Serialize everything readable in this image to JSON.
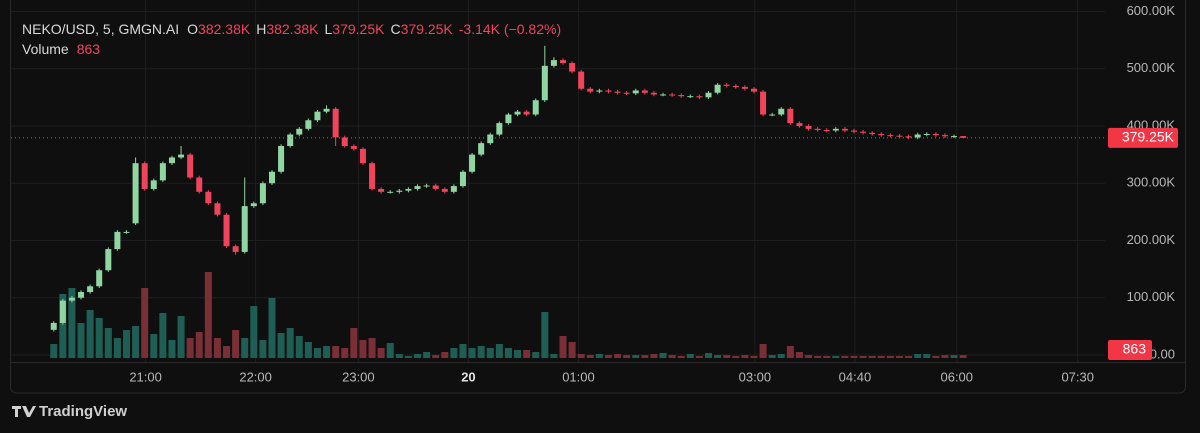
{
  "chart_data": {
    "type": "candlestick",
    "legend": {
      "title": "NEKO/USD, 5, GMGN.AI",
      "items": [
        {
          "label": "O",
          "value": "382.38K"
        },
        {
          "label": "H",
          "value": "382.38K"
        },
        {
          "label": "L",
          "value": "379.25K"
        },
        {
          "label": "C",
          "value": "379.25K"
        }
      ],
      "change": "-3.14K (−0.82%)",
      "volume_label": "Volume",
      "volume_value": "863"
    },
    "open": [
      44000,
      56000,
      95000,
      100000,
      110000,
      120000,
      148000,
      185000,
      215000,
      230000,
      335000,
      290000,
      305000,
      335000,
      345000,
      350000,
      310000,
      285000,
      265000,
      245000,
      190000,
      180000,
      260000,
      265000,
      300000,
      320000,
      365000,
      385000,
      395000,
      410000,
      425000,
      430000,
      380000,
      365000,
      360000,
      335000,
      290000,
      285000,
      285000,
      287000,
      290000,
      295000,
      296000,
      290000,
      285000,
      295000,
      320000,
      350000,
      370000,
      385000,
      405000,
      420000,
      425000,
      420000,
      445000,
      505000,
      515000,
      510000,
      495000,
      465000,
      460000,
      462000,
      460000,
      458000,
      457000,
      462000,
      458000,
      455000,
      455000,
      454000,
      452000,
      452000,
      450000,
      458000,
      472000,
      470000,
      468000,
      465000,
      460000,
      420000,
      420000,
      430000,
      405000,
      400000,
      395000,
      393000,
      392000,
      395000,
      392000,
      390000,
      388000,
      386000,
      384000,
      383000,
      382000,
      380000,
      385000,
      386000,
      384000,
      382000,
      382380
    ],
    "high": [
      59000,
      98000,
      103000,
      113000,
      123000,
      151000,
      188000,
      218000,
      218000,
      345000,
      338000,
      308000,
      338000,
      348000,
      365000,
      353000,
      313000,
      288000,
      268000,
      248000,
      193000,
      310000,
      268000,
      303000,
      323000,
      368000,
      388000,
      398000,
      413000,
      428000,
      436000,
      433000,
      383000,
      368000,
      363000,
      338000,
      293000,
      288000,
      290000,
      293000,
      298000,
      299000,
      299000,
      293000,
      298000,
      323000,
      353000,
      373000,
      388000,
      408000,
      423000,
      428000,
      428000,
      448000,
      540000,
      520000,
      518000,
      513000,
      498000,
      468000,
      465000,
      465000,
      463000,
      461000,
      465000,
      465000,
      461000,
      458000,
      458000,
      457000,
      455000,
      455000,
      461000,
      475000,
      475000,
      473000,
      471000,
      468000,
      463000,
      423000,
      433000,
      433000,
      408000,
      403000,
      398000,
      396000,
      398000,
      398000,
      395000,
      393000,
      391000,
      389000,
      387000,
      386000,
      385000,
      388000,
      389000,
      389000,
      387000,
      385000,
      382380
    ],
    "low": [
      41000,
      53000,
      92000,
      97000,
      107000,
      117000,
      145000,
      182000,
      212000,
      227000,
      287000,
      287000,
      302000,
      332000,
      342000,
      307000,
      282000,
      262000,
      242000,
      187000,
      175000,
      177000,
      257000,
      262000,
      297000,
      317000,
      362000,
      382000,
      392000,
      407000,
      422000,
      365000,
      362000,
      357000,
      332000,
      287000,
      282000,
      282000,
      282000,
      284000,
      287000,
      292000,
      287000,
      282000,
      282000,
      292000,
      317000,
      347000,
      367000,
      382000,
      402000,
      417000,
      417000,
      417000,
      442000,
      502000,
      507000,
      492000,
      462000,
      457000,
      457000,
      457000,
      455000,
      454000,
      454000,
      455000,
      452000,
      452000,
      451000,
      449000,
      449000,
      447000,
      447000,
      455000,
      467000,
      465000,
      462000,
      457000,
      417000,
      417000,
      417000,
      402000,
      397000,
      392000,
      390000,
      389000,
      389000,
      389000,
      387000,
      385000,
      383000,
      381000,
      380000,
      379000,
      377000,
      377000,
      382000,
      381000,
      379000,
      379000,
      379250
    ],
    "close": [
      56000,
      95000,
      100000,
      110000,
      120000,
      148000,
      185000,
      215000,
      215000,
      335000,
      290000,
      305000,
      335000,
      345000,
      350000,
      310000,
      285000,
      265000,
      245000,
      190000,
      180000,
      260000,
      265000,
      300000,
      320000,
      365000,
      385000,
      395000,
      410000,
      425000,
      430000,
      380000,
      365000,
      360000,
      335000,
      290000,
      285000,
      285000,
      287000,
      290000,
      295000,
      296000,
      290000,
      285000,
      295000,
      320000,
      350000,
      370000,
      385000,
      405000,
      420000,
      425000,
      420000,
      445000,
      505000,
      515000,
      510000,
      495000,
      465000,
      460000,
      462000,
      460000,
      458000,
      457000,
      462000,
      458000,
      455000,
      455000,
      454000,
      452000,
      452000,
      450000,
      458000,
      472000,
      470000,
      468000,
      465000,
      460000,
      420000,
      420000,
      430000,
      405000,
      400000,
      395000,
      393000,
      392000,
      395000,
      392000,
      390000,
      388000,
      386000,
      384000,
      383000,
      382000,
      380000,
      385000,
      386000,
      384000,
      382000,
      382380,
      379250
    ],
    "volume": [
      4060,
      18560,
      20300,
      10150,
      13920,
      11600,
      8700,
      5800,
      8120,
      9280,
      20300,
      6960,
      13050,
      5220,
      12180,
      5800,
      7540,
      24940,
      5800,
      3480,
      8120,
      5800,
      15080,
      5220,
      17400,
      7250,
      8700,
      6380,
      4640,
      2900,
      3480,
      3480,
      2900,
      8700,
      5220,
      5800,
      2900,
      4350,
      1160,
      580,
      1160,
      1740,
      870,
      1740,
      2900,
      4060,
      2900,
      3480,
      2900,
      4060,
      2900,
      2320,
      2320,
      1740,
      13340,
      1160,
      6380,
      4640,
      1160,
      870,
      1160,
      870,
      1160,
      870,
      870,
      870,
      1160,
      1450,
      870,
      580,
      1160,
      580,
      1450,
      870,
      870,
      580,
      870,
      580,
      4060,
      870,
      1160,
      3480,
      1740,
      870,
      580,
      580,
      580,
      580,
      580,
      580,
      580,
      580,
      580,
      580,
      580,
      1160,
      1160,
      580,
      870,
      870,
      863
    ],
    "up_color": "#8fd6a3",
    "down_color": "#f0435c",
    "volume_up_color": "#1f5e55",
    "volume_down_color": "#7a2e36",
    "ylim": [
      0,
      620000
    ],
    "yticks": [
      {
        "value": 0,
        "label": "0.00"
      },
      {
        "value": 100000,
        "label": "100.00K"
      },
      {
        "value": 200000,
        "label": "200.00K"
      },
      {
        "value": 300000,
        "label": "300.00K"
      },
      {
        "value": 400000,
        "label": "400.00K"
      },
      {
        "value": 500000,
        "label": "500.00K"
      },
      {
        "value": 600000,
        "label": "600.00K"
      }
    ],
    "xlim": [
      -4.7,
      115.6
    ],
    "xticks": [
      {
        "value": 10.1,
        "label": "21:00"
      },
      {
        "value": 22.2,
        "label": "22:00"
      },
      {
        "value": 33.5,
        "label": "23:00"
      },
      {
        "value": 45.6,
        "label": "20"
      },
      {
        "value": 57.7,
        "label": "01:00"
      },
      {
        "value": 77.1,
        "label": "03:00"
      },
      {
        "value": 88.1,
        "label": "04:40"
      },
      {
        "value": 99.3,
        "label": "06:00"
      },
      {
        "value": 112.6,
        "label": "07:30"
      }
    ],
    "grid": true,
    "brand": "TradingView"
  }
}
